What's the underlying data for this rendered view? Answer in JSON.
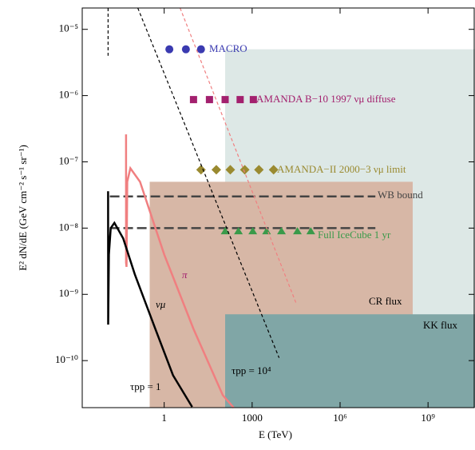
{
  "chart_data": {
    "type": "line",
    "xlabel": "E (TeV)",
    "ylabel": "E² dN/dE (GeV cm⁻² s⁻¹ sr⁻¹)",
    "log_x": true,
    "log_y": true,
    "xlim": [
      0.0016,
      40000000000
    ],
    "ylim": [
      1.95e-11,
      2.1e-05
    ],
    "xticks": [
      1,
      1000,
      {
        "value": 1000000,
        "label": "10⁶"
      },
      {
        "value": 1000000000,
        "label": "10⁹"
      }
    ],
    "yticks": [
      {
        "value": 1e-10,
        "label": "10⁻¹⁰"
      },
      {
        "value": 1e-09,
        "label": "10⁻⁹"
      },
      {
        "value": 1e-08,
        "label": "10⁻⁸"
      },
      {
        "value": 1e-07,
        "label": "10⁻⁷"
      },
      {
        "value": 1e-06,
        "label": "10⁻⁶"
      },
      {
        "value": 1e-05,
        "label": "10⁻⁵"
      }
    ],
    "regions": [
      {
        "color": "#dde8e6",
        "x": [
          120,
          40000000000
        ],
        "top": 5e-06
      },
      {
        "name": "CR flux",
        "color": "#d7b7a6",
        "x": [
          0.32,
          300000000
        ],
        "top": 5e-08
      },
      {
        "name": "KK flux",
        "color": "#80a6a6",
        "x": [
          120,
          40000000000
        ],
        "top": 5e-10
      }
    ],
    "series": [
      {
        "name": "MACRO",
        "color": "#3a3ab0",
        "mark": "circle",
        "x": [
          1.5,
          5.5,
          18
        ],
        "values": [
          5e-06,
          5e-06,
          5e-06
        ]
      },
      {
        "name": "AMANDA B−10 1997 νμ diffuse",
        "color": "#a3206e",
        "mark": "square",
        "x": [
          10,
          35,
          120,
          390,
          1100
        ],
        "values": [
          8.7e-07,
          8.7e-07,
          8.7e-07,
          8.7e-07,
          8.7e-07
        ]
      },
      {
        "name": "AMANDA−II 2000−3 νμ limit",
        "color": "#9a8a30",
        "mark": "diamond",
        "x": [
          18,
          60,
          180,
          560,
          1700,
          5400
        ],
        "values": [
          7.6e-08,
          7.6e-08,
          7.6e-08,
          7.6e-08,
          7.6e-08,
          7.6e-08
        ]
      },
      {
        "name": "WB bound",
        "color": "#444444",
        "mark": "dash",
        "x": [
          0.014,
          16000000
        ],
        "values": [
          3e-08,
          3e-08
        ]
      },
      {
        "color": "#444444",
        "mark": "dash",
        "x": [
          0.014,
          16000000
        ],
        "values": [
          1e-08,
          1e-08
        ]
      },
      {
        "name": "Full IceCube 1 yr",
        "color": "#3a9a4a",
        "mark": "triangle",
        "x": [
          120,
          340,
          1050,
          3100,
          10000,
          35000,
          100000
        ],
        "values": [
          9e-09,
          9e-09,
          9e-09,
          9e-09,
          9e-09,
          9e-09,
          9e-09
        ]
      },
      {
        "name": "π",
        "color": "#f07f80",
        "mark": "solid",
        "x": [
          0.05,
          0.05,
          0.052,
          0.055,
          0.07,
          0.15,
          1,
          10,
          100,
          235
        ],
        "values": [
          2.6e-07,
          3e-09,
          2.6e-09,
          5e-08,
          8e-08,
          5e-08,
          4e-09,
          3e-10,
          3e-11,
          1.95e-11
        ]
      },
      {
        "name": "νμ",
        "color": "#000000",
        "mark": "solid",
        "x": [
          0.0122,
          0.0123,
          0.013,
          0.015,
          0.02,
          0.04,
          0.1,
          0.5,
          2,
          9
        ],
        "values": [
          3.6e-08,
          3.5e-10,
          4e-09,
          1e-08,
          1.2e-08,
          7e-09,
          2e-09,
          3e-10,
          6e-11,
          2e-11
        ]
      },
      {
        "color": "#000000",
        "mark": "dashed",
        "x": [
          0.126,
          8300
        ],
        "values": [
          2.1e-05,
          1.1e-10
        ]
      },
      {
        "color": "#000000",
        "mark": "dashed",
        "x": [
          0.0122,
          0.0122
        ],
        "values": [
          2.1e-05,
          4e-06
        ]
      },
      {
        "color": "#f07f80",
        "mark": "dashed",
        "x": [
          3.5,
          33000
        ],
        "values": [
          2.1e-05,
          7e-10
        ]
      }
    ],
    "annotations": [
      "τpp = 10⁴",
      "τpp = 1"
    ]
  }
}
